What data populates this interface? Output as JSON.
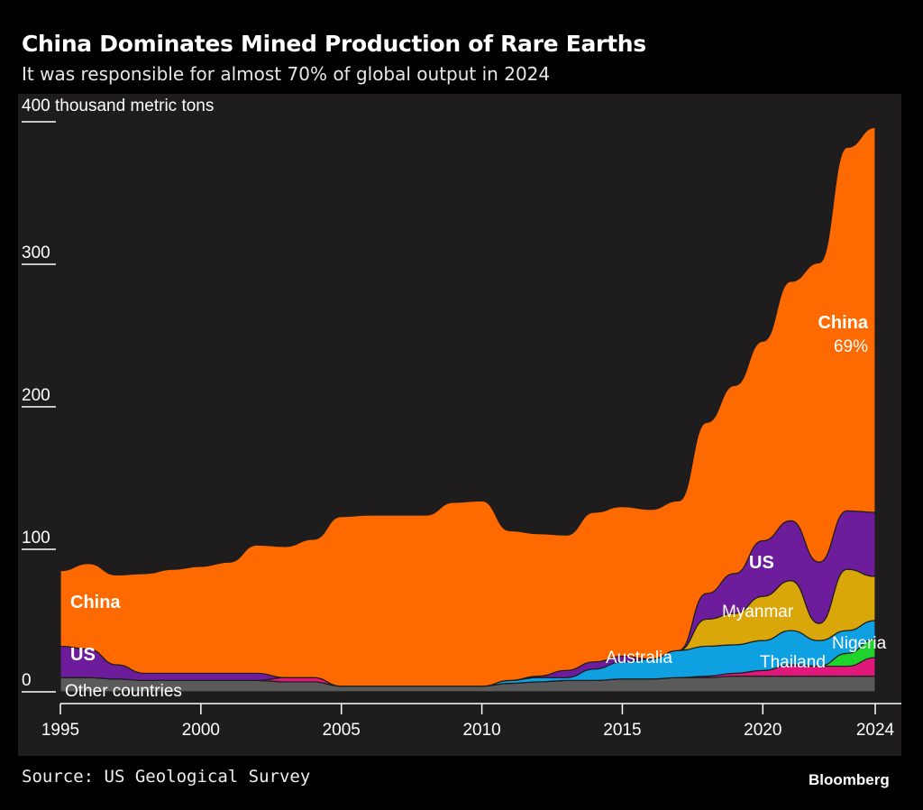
{
  "title": "China Dominates Mined Production of Rare Earths",
  "subtitle": "It was responsible for almost 70% of global output in 2024",
  "source": "Source: US Geological Survey",
  "logo": "Bloomberg",
  "chart_data": {
    "type": "area",
    "stacked": true,
    "ylabel": "400 thousand metric tons",
    "ylim": [
      0,
      400
    ],
    "yticks": [
      "0",
      "100",
      "200",
      "300",
      "400"
    ],
    "xticks": [
      "1995",
      "2000",
      "2005",
      "2010",
      "2015",
      "2020",
      "2024"
    ],
    "x": [
      1995,
      1996,
      1997,
      1998,
      1999,
      2000,
      2001,
      2002,
      2003,
      2004,
      2005,
      2006,
      2007,
      2008,
      2009,
      2010,
      2011,
      2012,
      2013,
      2014,
      2015,
      2016,
      2017,
      2018,
      2019,
      2020,
      2021,
      2022,
      2023,
      2024
    ],
    "series": [
      {
        "name": "Other countries",
        "color": "#5a5a5a",
        "values": [
          10,
          10,
          9,
          8,
          8,
          8,
          8,
          8,
          7,
          7,
          4,
          4,
          4,
          4,
          4,
          4,
          6,
          7,
          8,
          8,
          9,
          9,
          10,
          10,
          11,
          11,
          11,
          11,
          11,
          11
        ]
      },
      {
        "name": "Thailand",
        "color": "#e0187c",
        "values": [
          0,
          0,
          0,
          0,
          0,
          0,
          0,
          0,
          3,
          3,
          0,
          0,
          0,
          0,
          0,
          0,
          0,
          0,
          0,
          0,
          0,
          0,
          0,
          1,
          2,
          4,
          8,
          7,
          7,
          13
        ]
      },
      {
        "name": "Nigeria",
        "color": "#1ed42c",
        "values": [
          0,
          0,
          0,
          0,
          0,
          0,
          0,
          0,
          0,
          0,
          0,
          0,
          0,
          0,
          0,
          0,
          0,
          0,
          0,
          0,
          0,
          0,
          0,
          0,
          0,
          0,
          0,
          0,
          9,
          13
        ]
      },
      {
        "name": "Australia",
        "color": "#0ea0e0",
        "values": [
          0,
          0,
          0,
          0,
          0,
          0,
          0,
          0,
          0,
          0,
          0,
          0,
          0,
          0,
          0,
          0,
          2,
          3,
          2,
          8,
          12,
          14,
          19,
          21,
          20,
          21,
          24,
          18,
          16,
          13
        ]
      },
      {
        "name": "Myanmar",
        "color": "#d9a70a",
        "values": [
          0,
          0,
          0,
          0,
          0,
          0,
          0,
          0,
          0,
          0,
          0,
          0,
          0,
          0,
          0,
          0,
          0,
          0,
          0,
          0,
          0,
          0,
          0,
          19,
          22,
          31,
          35,
          12,
          43,
          31
        ]
      },
      {
        "name": "US",
        "color": "#6d1d9c",
        "values": [
          22,
          20,
          10,
          5,
          5,
          5,
          5,
          5,
          0,
          0,
          0,
          0,
          0,
          0,
          0,
          0,
          0,
          1,
          5,
          5,
          4,
          0,
          0,
          18,
          28,
          39,
          42,
          43,
          41,
          45
        ]
      },
      {
        "name": "China",
        "color": "#ff6a00",
        "values": [
          53,
          60,
          63,
          70,
          73,
          75,
          78,
          90,
          92,
          97,
          119,
          120,
          120,
          120,
          129,
          130,
          105,
          100,
          95,
          105,
          105,
          105,
          105,
          120,
          132,
          140,
          168,
          210,
          255,
          270
        ]
      }
    ],
    "annotations": {
      "china_share_2024": "69%"
    },
    "labels": {
      "china": "China",
      "us": "US",
      "other": "Other countries",
      "australia": "Australia",
      "myanmar": "Myanmar",
      "thailand": "Thailand",
      "nigeria": "Nigeria"
    },
    "grid": false,
    "background": "#1e1c1c"
  }
}
